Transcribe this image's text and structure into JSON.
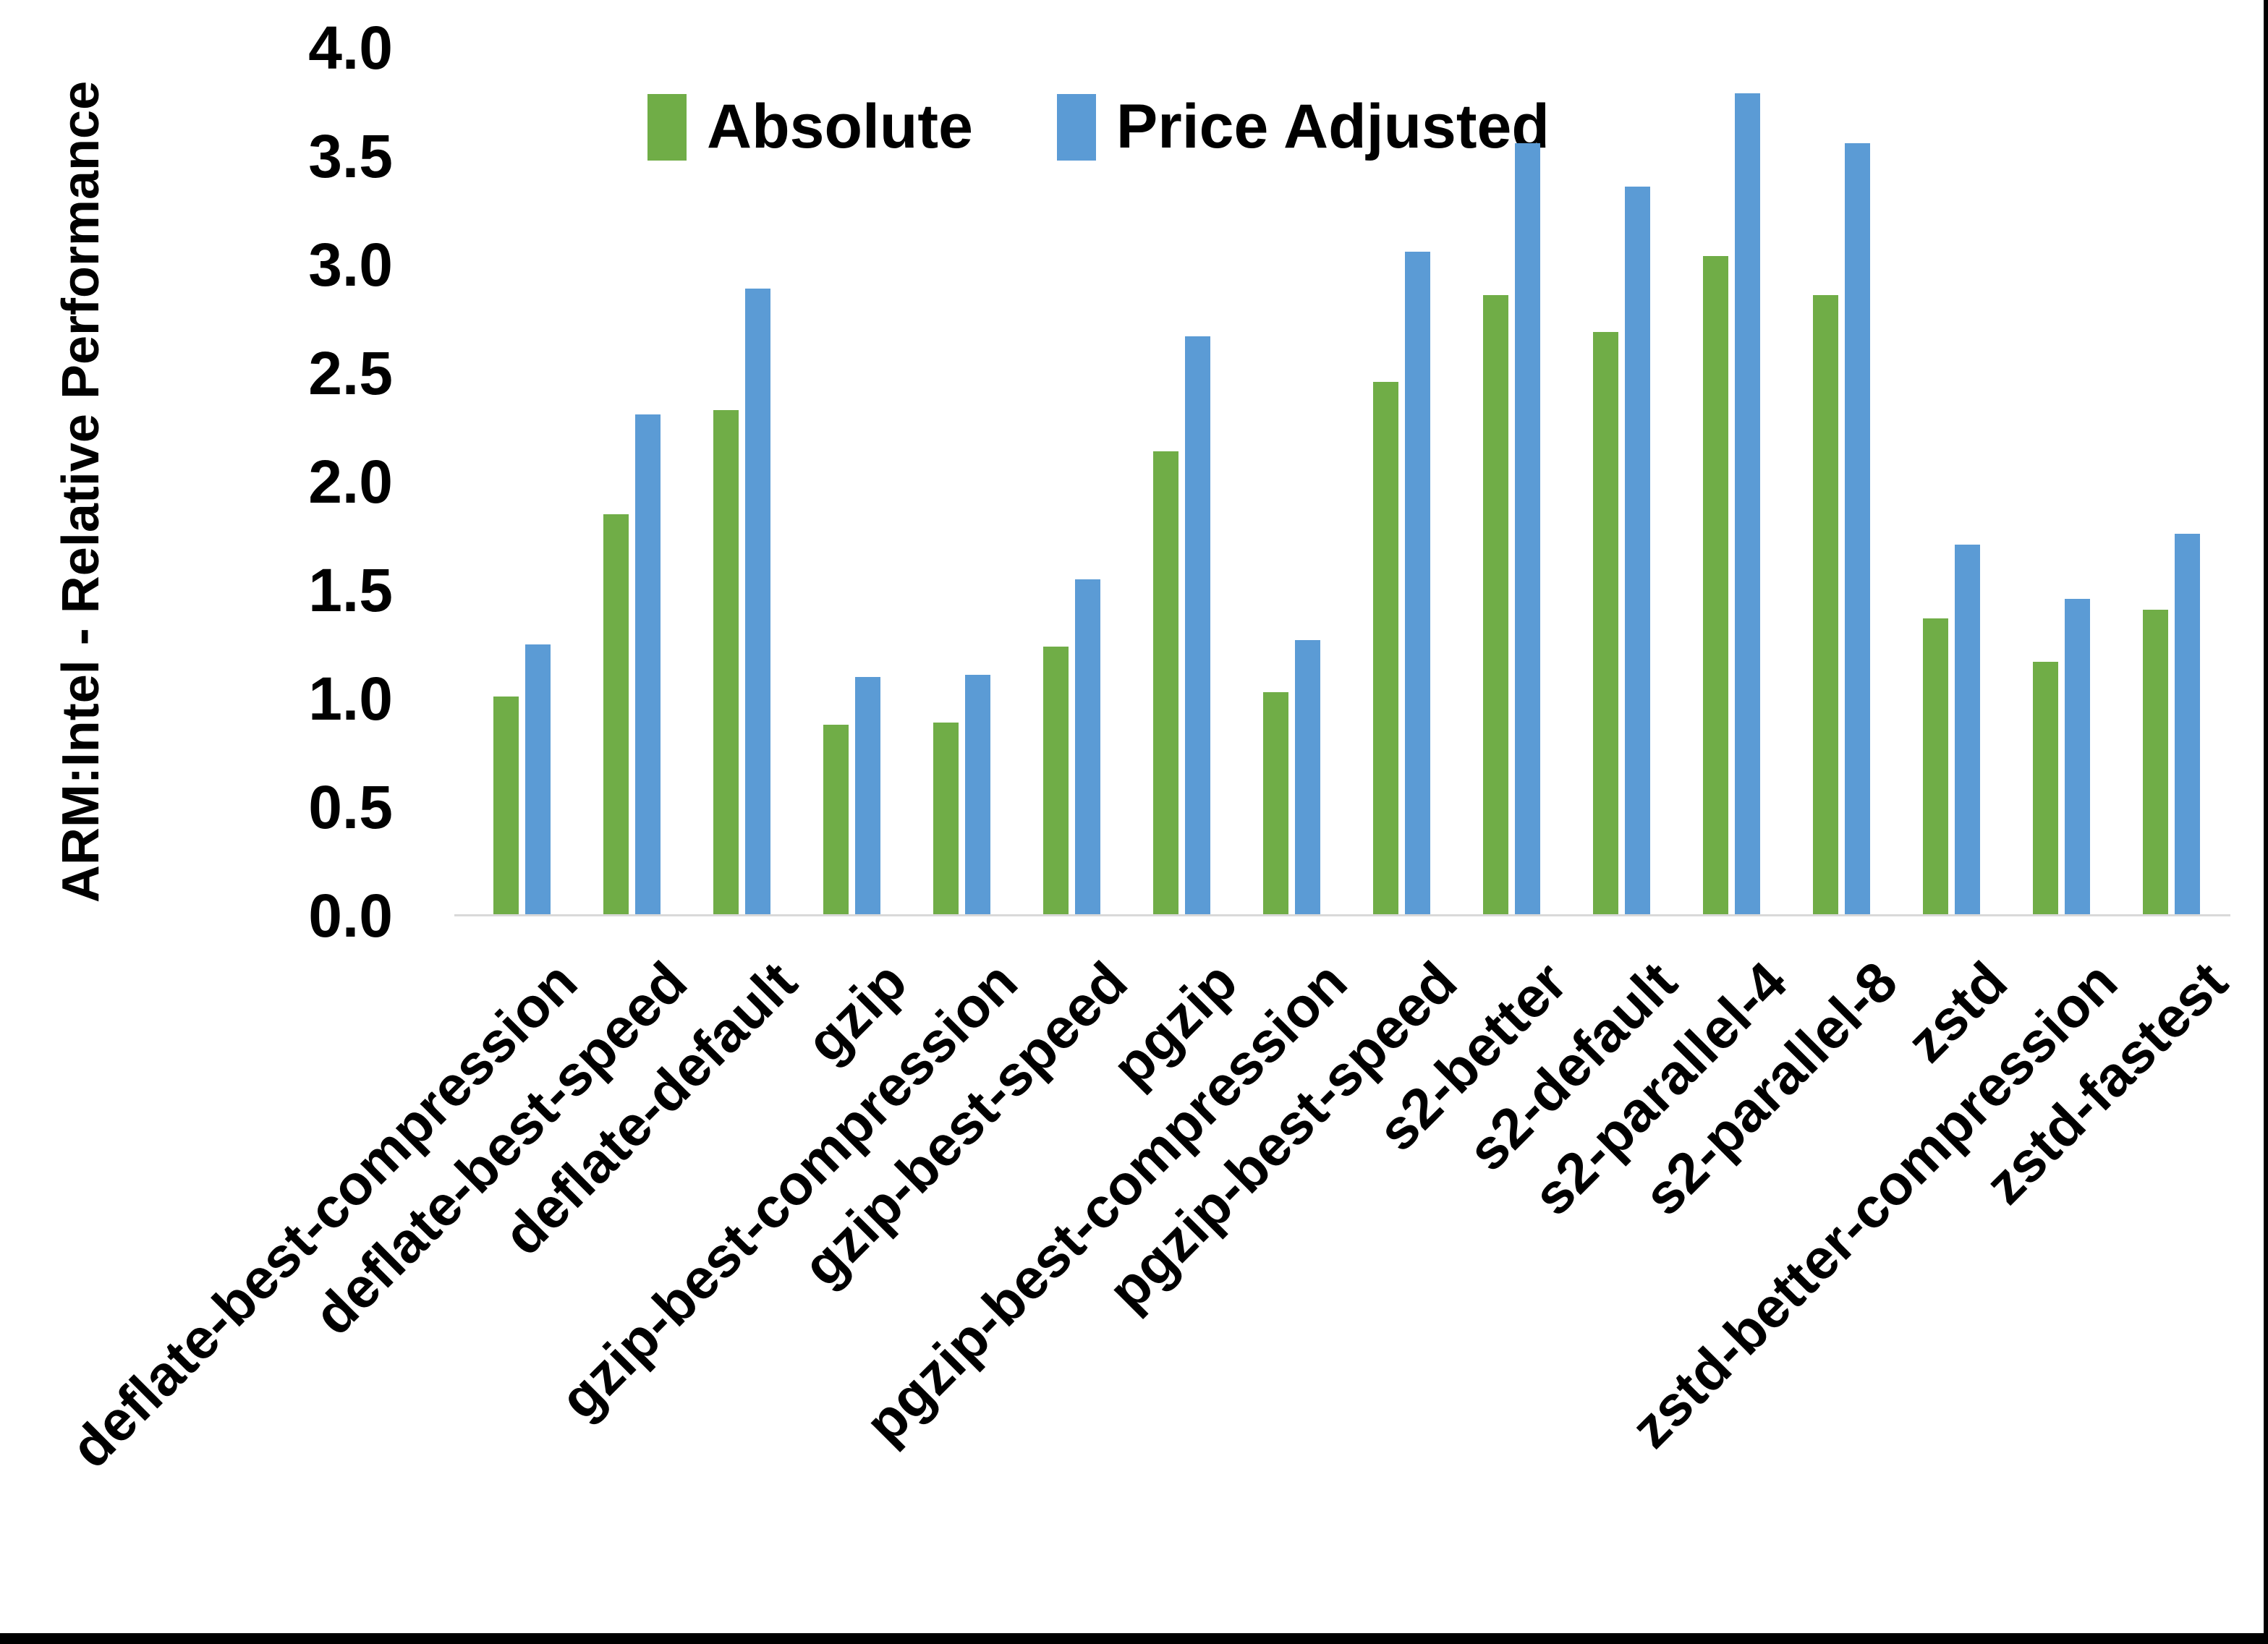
{
  "chart_data": {
    "type": "bar",
    "title": "",
    "xlabel": "",
    "ylabel": "ARM:Intel - Relative Performance",
    "ylim": [
      0.0,
      4.0
    ],
    "ytick_step": 0.5,
    "ytick_labels": [
      "0.0",
      "0.5",
      "1.0",
      "1.5",
      "2.0",
      "2.5",
      "3.0",
      "3.5",
      "4.0"
    ],
    "grid": false,
    "legend_position": "top-center",
    "categories": [
      "deflate-best-compression",
      "deflate-best-speed",
      "deflate-default",
      "gzip",
      "gzip-best-compression",
      "gzip-best-speed",
      "pgzip",
      "pgzip-best-compression",
      "pgzip-best-speed",
      "s2-better",
      "s2-default",
      "s2-parallel-4",
      "s2-parallel-8",
      "zstd",
      "zstd-better-compression",
      "zstd-fastest"
    ],
    "series": [
      {
        "name": "Absolute",
        "color": "#70AD47",
        "values": [
          1.01,
          1.85,
          2.33,
          0.88,
          0.89,
          1.24,
          2.14,
          1.03,
          2.46,
          2.86,
          2.69,
          3.04,
          2.86,
          1.37,
          1.17,
          1.41
        ]
      },
      {
        "name": "Price Adjusted",
        "color": "#5B9BD5",
        "values": [
          1.25,
          2.31,
          2.89,
          1.1,
          1.11,
          1.55,
          2.67,
          1.27,
          3.06,
          3.56,
          3.36,
          3.79,
          3.56,
          1.71,
          1.46,
          1.76
        ]
      }
    ]
  },
  "colors": {
    "axis_line": "#d9d9d9",
    "frame_border": "#000000",
    "text": "#000000",
    "background": "#ffffff"
  }
}
